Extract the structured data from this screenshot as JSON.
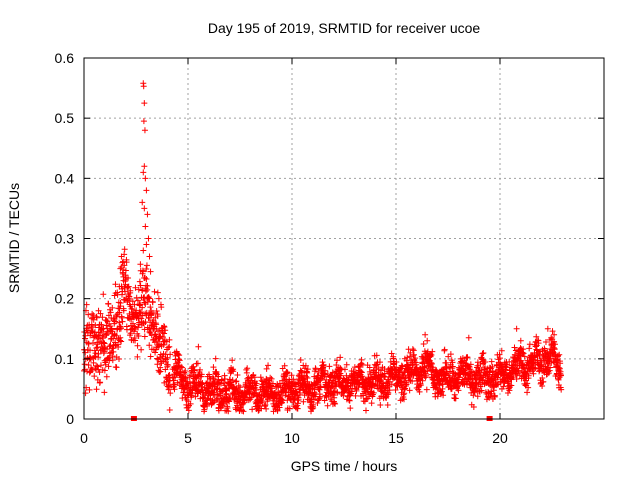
{
  "chart_data": {
    "type": "scatter",
    "title": "Day 195 of 2019, SRMTID for receiver ucoe",
    "xlabel": "GPS time / hours",
    "ylabel": "SRMTID / TECUs",
    "xlim": [
      0,
      25
    ],
    "ylim": [
      0,
      0.6
    ],
    "x_ticks": [
      0,
      5,
      10,
      15,
      20
    ],
    "y_ticks": [
      0,
      0.1,
      0.2,
      0.3,
      0.4,
      0.5,
      0.6
    ],
    "x_tick_labels": [
      "0",
      "5",
      "10",
      "15",
      "20"
    ],
    "y_tick_labels": [
      "0",
      "0.1",
      "0.2",
      "0.3",
      "0.4",
      "0.5",
      "0.6"
    ],
    "grid": true,
    "marker": "+",
    "color": "#ff0000",
    "legend": "none",
    "profile": [
      [
        0.0,
        0.11
      ],
      [
        0.5,
        0.13
      ],
      [
        1.0,
        0.12
      ],
      [
        1.5,
        0.16
      ],
      [
        2.0,
        0.2
      ],
      [
        2.5,
        0.17
      ],
      [
        3.0,
        0.2
      ],
      [
        3.5,
        0.14
      ],
      [
        4.0,
        0.09
      ],
      [
        4.5,
        0.07
      ],
      [
        5.0,
        0.055
      ],
      [
        6.0,
        0.05
      ],
      [
        7.0,
        0.045
      ],
      [
        8.0,
        0.045
      ],
      [
        9.0,
        0.04
      ],
      [
        10.0,
        0.05
      ],
      [
        11.0,
        0.055
      ],
      [
        12.0,
        0.06
      ],
      [
        13.0,
        0.06
      ],
      [
        14.0,
        0.065
      ],
      [
        15.0,
        0.07
      ],
      [
        16.0,
        0.08
      ],
      [
        16.5,
        0.085
      ],
      [
        17.0,
        0.065
      ],
      [
        18.0,
        0.07
      ],
      [
        19.0,
        0.07
      ],
      [
        20.0,
        0.07
      ],
      [
        21.0,
        0.09
      ],
      [
        22.0,
        0.095
      ],
      [
        22.5,
        0.11
      ],
      [
        22.9,
        0.07
      ]
    ],
    "peaks": [
      [
        2.85,
        0.558
      ],
      [
        2.87,
        0.553
      ],
      [
        2.9,
        0.525
      ],
      [
        2.88,
        0.495
      ],
      [
        2.93,
        0.48
      ],
      [
        2.9,
        0.42
      ],
      [
        2.85,
        0.41
      ],
      [
        2.95,
        0.4
      ],
      [
        3.0,
        0.38
      ],
      [
        2.8,
        0.36
      ],
      [
        2.9,
        0.35
      ],
      [
        3.05,
        0.34
      ],
      [
        2.95,
        0.32
      ],
      [
        3.1,
        0.3
      ],
      [
        3.0,
        0.29
      ],
      [
        2.85,
        0.28
      ],
      [
        3.15,
        0.27
      ],
      [
        3.2,
        0.245
      ],
      [
        1.8,
        0.27
      ],
      [
        1.85,
        0.26
      ],
      [
        1.75,
        0.25
      ],
      [
        1.9,
        0.23
      ],
      [
        1.7,
        0.22
      ],
      [
        0.7,
        0.18
      ],
      [
        0.6,
        0.17
      ],
      [
        3.55,
        0.21
      ],
      [
        3.6,
        0.2
      ],
      [
        3.7,
        0.19
      ],
      [
        4.1,
        0.12
      ],
      [
        5.5,
        0.12
      ],
      [
        16.4,
        0.14
      ],
      [
        16.5,
        0.13
      ],
      [
        18.5,
        0.135
      ],
      [
        20.8,
        0.15
      ],
      [
        22.3,
        0.15
      ],
      [
        22.6,
        0.14
      ],
      [
        21.0,
        0.13
      ]
    ],
    "gaps": [
      [
        4.15,
        4.25
      ]
    ],
    "spread": 0.022,
    "samples": 2700,
    "x_end": 22.95,
    "markers_on_axis": [
      2.4,
      19.5
    ]
  }
}
